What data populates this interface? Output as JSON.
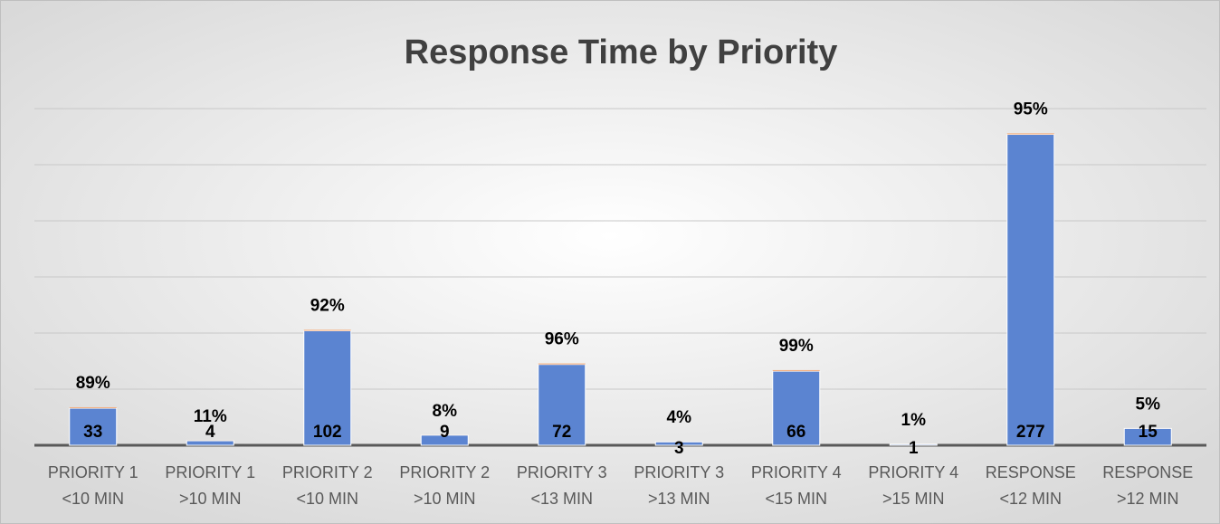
{
  "chart_data": {
    "type": "bar",
    "title": "Response Time by Priority",
    "categories": [
      [
        "PRIORITY 1",
        "<10 MIN"
      ],
      [
        "PRIORITY 1",
        ">10 MIN"
      ],
      [
        "PRIORITY 2",
        "<10 MIN"
      ],
      [
        "PRIORITY 2",
        ">10 MIN"
      ],
      [
        "PRIORITY 3",
        "<13 MIN"
      ],
      [
        "PRIORITY 3",
        ">13 MIN"
      ],
      [
        "PRIORITY 4",
        "<15 MIN"
      ],
      [
        "PRIORITY 4",
        ">15 MIN"
      ],
      [
        "RESPONSE",
        "<12 MIN"
      ],
      [
        "RESPONSE",
        ">12 MIN"
      ]
    ],
    "series": [
      {
        "color": "#5b84d1",
        "values": [
          33,
          4,
          102,
          9,
          72,
          3,
          66,
          1,
          277,
          15
        ]
      },
      {
        "color": "#f4b183",
        "values": [
          0.89,
          0.11,
          0.92,
          0.08,
          0.96,
          0.04,
          0.99,
          0.01,
          0.95,
          0.05
        ],
        "value_labels": [
          "89%",
          "11%",
          "92%",
          "8%",
          "96%",
          "4%",
          "99%",
          "1%",
          "95%",
          "5%"
        ]
      }
    ],
    "ylim": [
      0,
      300
    ],
    "yticks": [
      0,
      50,
      100,
      150,
      200,
      250,
      300
    ],
    "grid": true
  }
}
